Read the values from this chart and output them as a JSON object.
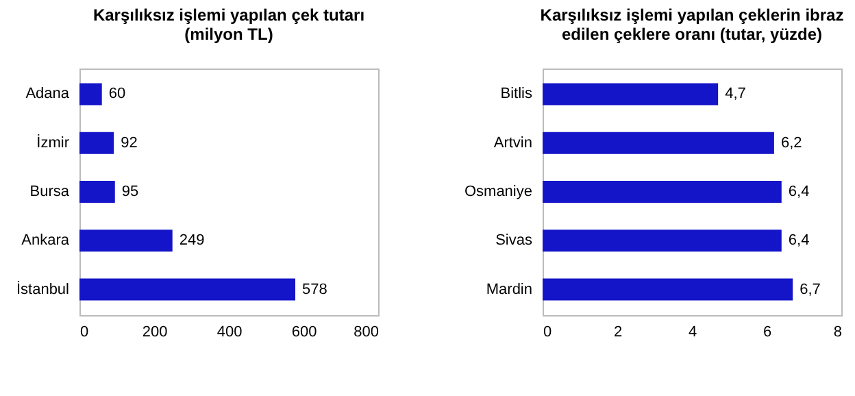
{
  "chart_data": [
    {
      "type": "bar",
      "orientation": "horizontal",
      "title": "Karşılıksız işlemi yapılan çek tutarı\n(milyon TL)",
      "categories": [
        "Adana",
        "İzmir",
        "Bursa",
        "Ankara",
        "İstanbul"
      ],
      "values": [
        60,
        92,
        95,
        249,
        578
      ],
      "color": "#1414c8",
      "xlim": [
        0,
        800
      ],
      "xticks": [
        0,
        200,
        400,
        600,
        800
      ],
      "data_labels": true
    },
    {
      "type": "bar",
      "orientation": "horizontal",
      "title": "Karşılıksız işlemi yapılan çeklerin ibraz\nedilen çeklere oranı (tutar, yüzde)",
      "categories": [
        "Bitlis",
        "Artvin",
        "Osmaniye",
        "Sivas",
        "Mardin"
      ],
      "values": [
        4.7,
        6.2,
        6.4,
        6.4,
        6.7
      ],
      "value_labels": [
        "4,7",
        "6,2",
        "6,4",
        "6,4",
        "6,7"
      ],
      "color": "#1414c8",
      "xlim": [
        0,
        8
      ],
      "xticks": [
        0,
        2,
        4,
        6,
        8
      ]
    }
  ]
}
